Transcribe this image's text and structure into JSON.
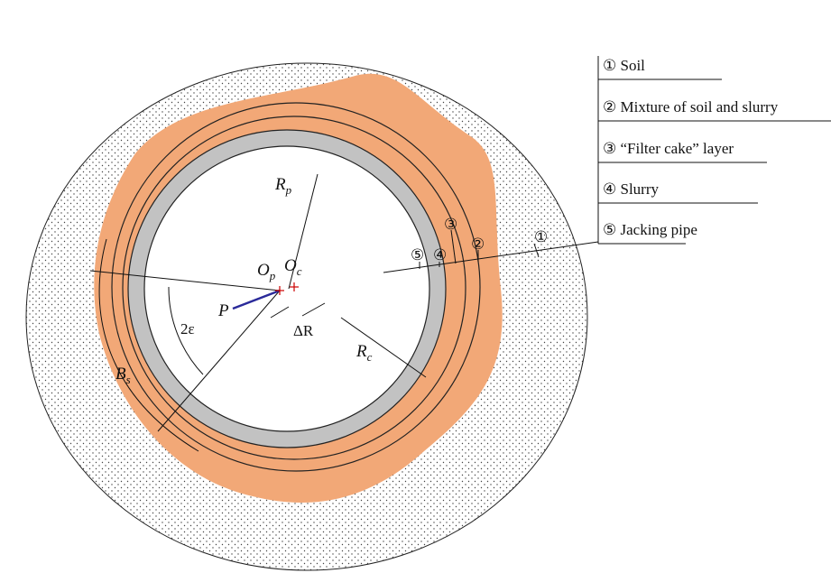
{
  "legend": [
    "① Soil",
    "② Mixture of soil and slurry",
    "③ “Filter cake” layer",
    "④ Slurry",
    "⑤ Jacking pipe"
  ],
  "labels": {
    "rp": {
      "main": "R",
      "sub": "p"
    },
    "rc": {
      "main": "R",
      "sub": "c"
    },
    "op": {
      "main": "O",
      "sub": "p"
    },
    "oc": {
      "main": "O",
      "sub": "c"
    },
    "bs": {
      "main": "B",
      "sub": "s"
    },
    "p": "P",
    "angle": "2ε",
    "dr": "ΔR"
  },
  "markers": [
    "①",
    "②",
    "③",
    "④",
    "⑤"
  ]
}
